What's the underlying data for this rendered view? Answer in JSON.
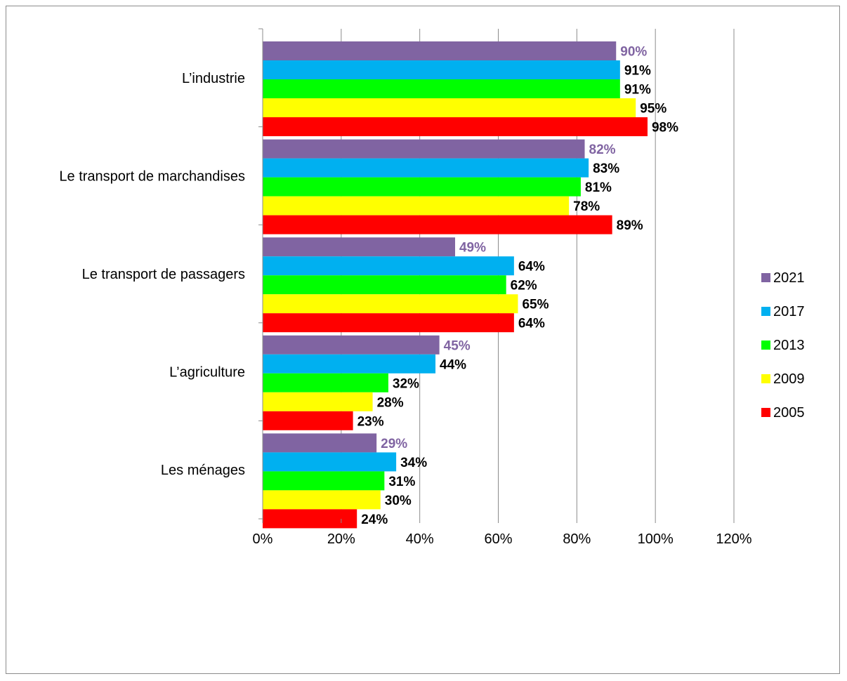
{
  "chart_data": {
    "type": "bar",
    "orientation": "horizontal",
    "categories": [
      "L’industrie",
      "Le transport de marchandises",
      "Le transport de passagers",
      "L’agriculture",
      "Les ménages"
    ],
    "series": [
      {
        "name": "2021",
        "color": "#8064A2",
        "label_color": "#8064A2",
        "values": [
          90,
          82,
          49,
          45,
          29
        ]
      },
      {
        "name": "2017",
        "color": "#00B0F0",
        "label_color": "#000000",
        "values": [
          91,
          83,
          64,
          44,
          34
        ]
      },
      {
        "name": "2013",
        "color": "#00FF00",
        "label_color": "#000000",
        "values": [
          91,
          81,
          62,
          32,
          31
        ]
      },
      {
        "name": "2009",
        "color": "#FFFF00",
        "label_color": "#000000",
        "values": [
          95,
          78,
          65,
          28,
          30
        ]
      },
      {
        "name": "2005",
        "color": "#FF0000",
        "label_color": "#000000",
        "values": [
          98,
          89,
          64,
          23,
          24
        ]
      }
    ],
    "xlim": [
      0,
      120
    ],
    "x_ticks": [
      0,
      20,
      40,
      60,
      80,
      100,
      120
    ],
    "x_tick_labels": [
      "0%",
      "20%",
      "40%",
      "60%",
      "80%",
      "100%",
      "120%"
    ],
    "value_suffix": "%",
    "title": "",
    "xlabel": "",
    "ylabel": "",
    "grid": "vertical",
    "legend_position": "right"
  }
}
